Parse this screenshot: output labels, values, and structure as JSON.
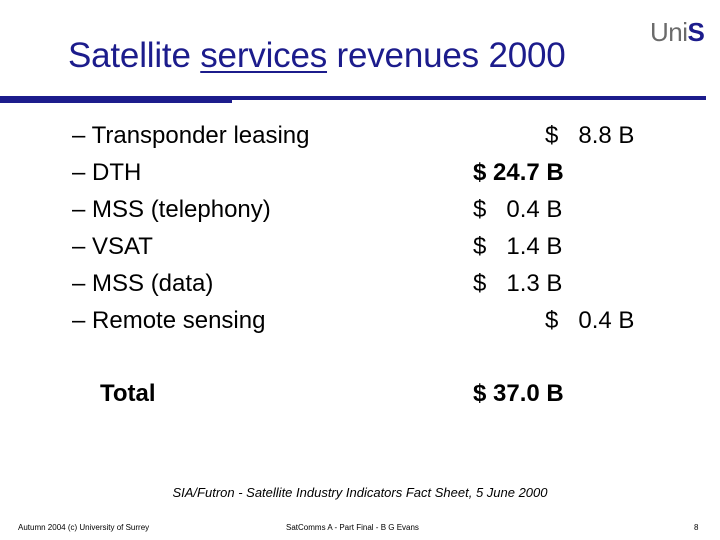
{
  "slide": {
    "title_part1": "Satellite ",
    "title_underlined": "services",
    "title_part2": " revenues 2000",
    "logo_uni": "Uni",
    "logo_s": "S"
  },
  "items": [
    {
      "label": "– Transponder leasing",
      "value": "$   8.8 B"
    },
    {
      "label": "– DTH",
      "value": "$ 24.7 B"
    },
    {
      "label": "– MSS (telephony)",
      "value": "$   0.4 B"
    },
    {
      "label": "– VSAT",
      "value": "$   1.4 B"
    },
    {
      "label": "– MSS (data)",
      "value": "$   1.3 B"
    },
    {
      "label": "– Remote sensing",
      "value": "$   0.4 B"
    }
  ],
  "total": {
    "label": "Total",
    "value": "$ 37.0 B"
  },
  "source": "SIA/Futron - Satellite Industry Indicators Fact Sheet, 5 June 2000",
  "footer": {
    "left": "Autumn 2004 (c) University of Surrey",
    "center": "SatComms A - Part Final - B G Evans",
    "page": "8"
  }
}
